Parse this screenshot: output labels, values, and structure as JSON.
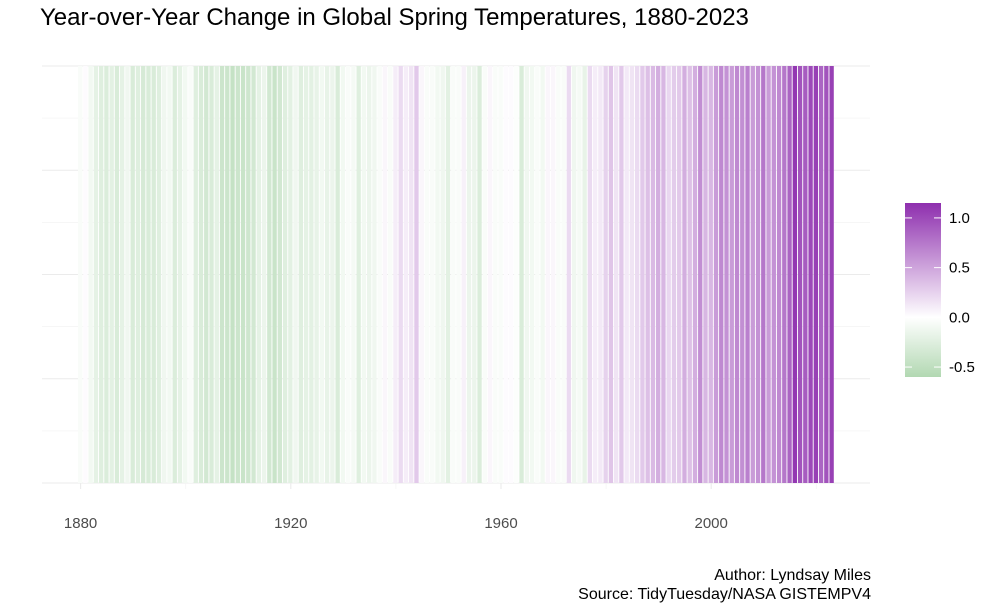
{
  "chart_data": {
    "type": "heatmap",
    "title": "Year-over-Year Change in Global Spring Temperatures, 1880-2023",
    "xlabel": "",
    "ylabel": "",
    "x_range": [
      1880,
      2023
    ],
    "x_ticks": [
      "1880",
      "1920",
      "1960",
      "2000"
    ],
    "legend": {
      "placement": "right",
      "range": [
        -0.6,
        1.15
      ],
      "ticks": [
        "1.0",
        "0.5",
        "0.0",
        "-0.5"
      ],
      "low_color": "#b2d8b2",
      "mid_color": "#ffffff",
      "high_color": "#8e2fae"
    },
    "grid": true,
    "x": [
      1880,
      1881,
      1882,
      1883,
      1884,
      1885,
      1886,
      1887,
      1888,
      1889,
      1890,
      1891,
      1892,
      1893,
      1894,
      1895,
      1896,
      1897,
      1898,
      1899,
      1900,
      1901,
      1902,
      1903,
      1904,
      1905,
      1906,
      1907,
      1908,
      1909,
      1910,
      1911,
      1912,
      1913,
      1914,
      1915,
      1916,
      1917,
      1918,
      1919,
      1920,
      1921,
      1922,
      1923,
      1924,
      1925,
      1926,
      1927,
      1928,
      1929,
      1930,
      1931,
      1932,
      1933,
      1934,
      1935,
      1936,
      1937,
      1938,
      1939,
      1940,
      1941,
      1942,
      1943,
      1944,
      1945,
      1946,
      1947,
      1948,
      1949,
      1950,
      1951,
      1952,
      1953,
      1954,
      1955,
      1956,
      1957,
      1958,
      1959,
      1960,
      1961,
      1962,
      1963,
      1964,
      1965,
      1966,
      1967,
      1968,
      1969,
      1970,
      1971,
      1972,
      1973,
      1974,
      1975,
      1976,
      1977,
      1978,
      1979,
      1980,
      1981,
      1982,
      1983,
      1984,
      1985,
      1986,
      1987,
      1988,
      1989,
      1990,
      1991,
      1992,
      1993,
      1994,
      1995,
      1996,
      1997,
      1998,
      1999,
      2000,
      2001,
      2002,
      2003,
      2004,
      2005,
      2006,
      2007,
      2008,
      2009,
      2010,
      2011,
      2012,
      2013,
      2014,
      2015,
      2016,
      2017,
      2018,
      2019,
      2020,
      2021,
      2022,
      2023
    ],
    "values": [
      -0.05,
      0.02,
      -0.1,
      -0.2,
      -0.25,
      -0.28,
      -0.22,
      -0.3,
      -0.2,
      -0.12,
      -0.3,
      -0.25,
      -0.32,
      -0.3,
      -0.3,
      -0.25,
      -0.12,
      -0.1,
      -0.28,
      -0.2,
      -0.1,
      -0.05,
      -0.25,
      -0.3,
      -0.35,
      -0.3,
      -0.2,
      -0.4,
      -0.4,
      -0.45,
      -0.4,
      -0.42,
      -0.38,
      -0.35,
      -0.2,
      -0.15,
      -0.35,
      -0.42,
      -0.35,
      -0.25,
      -0.22,
      -0.12,
      -0.25,
      -0.2,
      -0.22,
      -0.18,
      -0.1,
      -0.18,
      -0.15,
      -0.3,
      -0.1,
      -0.05,
      -0.08,
      -0.25,
      -0.1,
      -0.15,
      -0.12,
      -0.05,
      0.05,
      -0.05,
      0.1,
      0.2,
      0.1,
      0.15,
      0.3,
      0.05,
      -0.05,
      -0.05,
      -0.1,
      -0.12,
      -0.22,
      -0.05,
      -0.05,
      0.08,
      -0.15,
      -0.15,
      -0.28,
      -0.05,
      0.05,
      -0.05,
      -0.05,
      0.02,
      0.02,
      -0.02,
      -0.3,
      -0.12,
      -0.1,
      -0.05,
      -0.1,
      0.05,
      0.05,
      -0.05,
      -0.05,
      0.2,
      -0.12,
      -0.08,
      -0.18,
      0.2,
      0.1,
      0.12,
      0.25,
      0.32,
      0.15,
      0.3,
      0.12,
      0.15,
      0.2,
      0.3,
      0.35,
      0.38,
      0.45,
      0.4,
      0.22,
      0.28,
      0.3,
      0.45,
      0.35,
      0.45,
      0.62,
      0.4,
      0.4,
      0.55,
      0.65,
      0.6,
      0.55,
      0.65,
      0.62,
      0.7,
      0.55,
      0.6,
      0.75,
      0.55,
      0.6,
      0.65,
      0.75,
      0.85,
      1.1,
      0.95,
      0.9,
      1.0,
      1.05,
      0.85,
      0.95,
      1.05
    ]
  },
  "caption": {
    "author": "Author: Lyndsay Miles",
    "source": "Source: TidyTuesday/NASA GISTEMPV4"
  }
}
